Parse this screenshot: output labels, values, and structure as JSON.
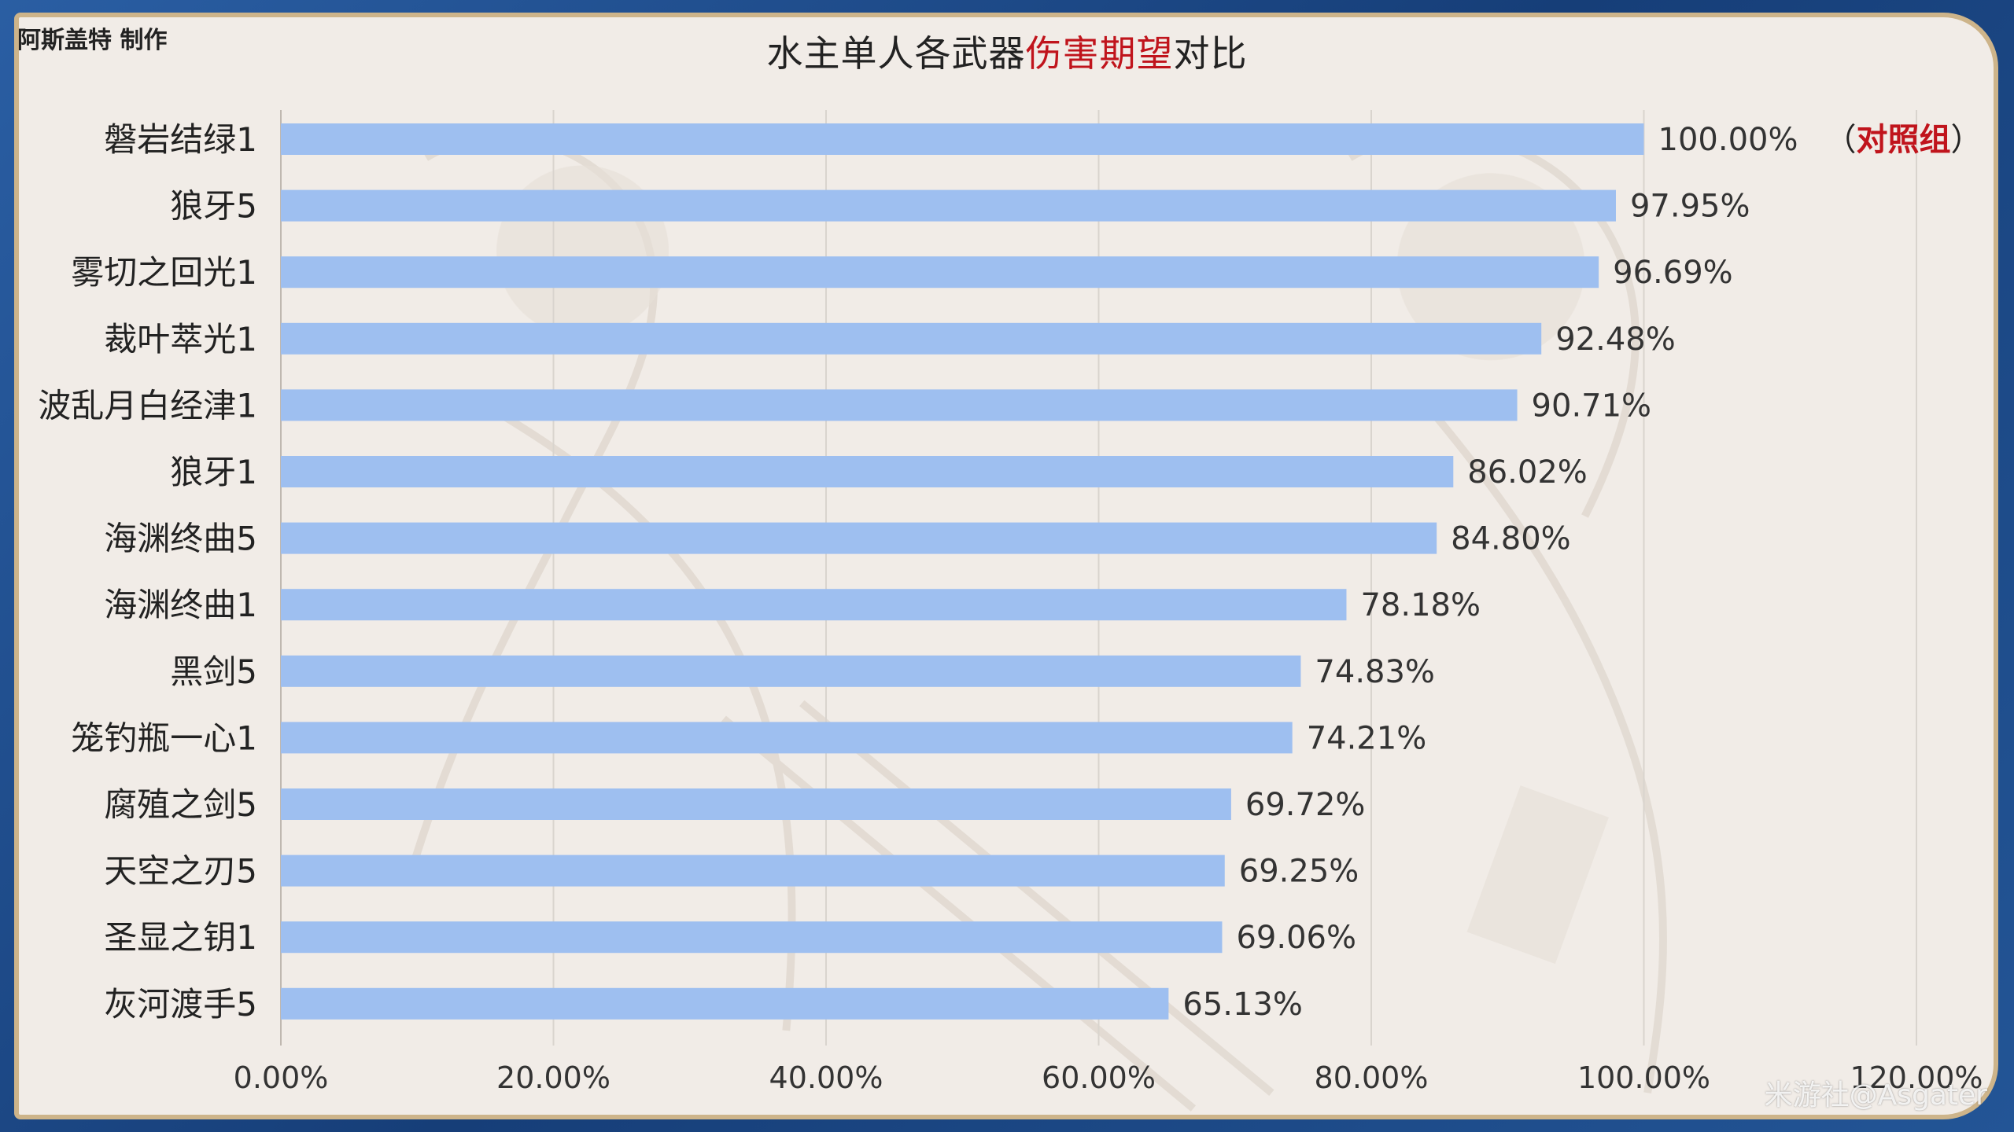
{
  "header": {
    "author": "阿斯盖特 制作",
    "title_pre": "水主单人各武器",
    "title_highlight": "伤害期望",
    "title_post": "对比"
  },
  "annotation": {
    "open": "（",
    "text": "对照组",
    "close": "）"
  },
  "credit": "米游社@Asgater",
  "colors": {
    "bar": "#9ebff0",
    "highlight": "#c0141c",
    "grid": "#d9d4ce",
    "background": "#f1ece7",
    "frame": "#1d4a86",
    "border": "#cdb48a"
  },
  "chart_data": {
    "type": "bar",
    "orientation": "horizontal",
    "title": "水主单人各武器伤害期望对比",
    "categories": [
      "磐岩结绿1",
      "狼牙5",
      "雾切之回光1",
      "裁叶萃光1",
      "波乱月白经津1",
      "狼牙1",
      "海渊终曲5",
      "海渊终曲1",
      "黑剑5",
      "笼钓瓶一心1",
      "腐殖之剑5",
      "天空之刃5",
      "圣显之钥1",
      "灰河渡手5"
    ],
    "values": [
      100.0,
      97.95,
      96.69,
      92.48,
      90.71,
      86.02,
      84.8,
      78.18,
      74.83,
      74.21,
      69.72,
      69.25,
      69.06,
      65.13
    ],
    "value_labels": [
      "100.00%",
      "97.95%",
      "96.69%",
      "92.48%",
      "90.71%",
      "86.02%",
      "84.80%",
      "78.18%",
      "74.83%",
      "74.21%",
      "69.72%",
      "69.25%",
      "69.06%",
      "65.13%"
    ],
    "xlim": [
      0,
      120
    ],
    "x_ticks": [
      0,
      20,
      40,
      60,
      80,
      100,
      120
    ],
    "x_tick_labels": [
      "0.00%",
      "20.00%",
      "40.00%",
      "60.00%",
      "80.00%",
      "100.00%",
      "120.00%"
    ],
    "grid": true,
    "legend": "none"
  }
}
